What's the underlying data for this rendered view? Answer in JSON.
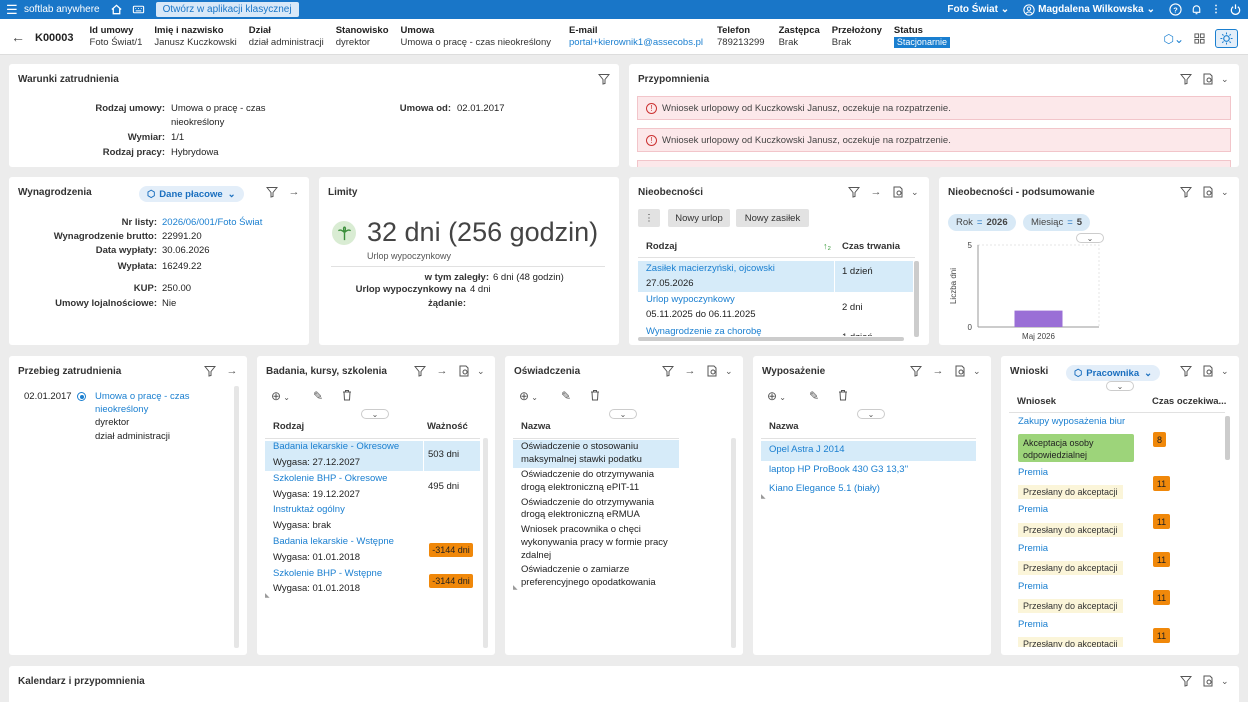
{
  "topbar": {
    "brand": "softlab anywhere",
    "classic_btn": "Otwórz w aplikacji klasycznej",
    "company": "Foto Świat",
    "user": "Magdalena Wilkowska"
  },
  "header": {
    "id": "K00003",
    "cols": [
      {
        "l": "Id umowy",
        "v": "Foto Świat/1"
      },
      {
        "l": "Imię i nazwisko",
        "v": "Janusz Kuczkowski"
      },
      {
        "l": "Dział",
        "v": "dział administracji"
      },
      {
        "l": "Stanowisko",
        "v": "dyrektor"
      },
      {
        "l": "Umowa",
        "v": "Umowa o pracę - czas nieokreślony"
      },
      {
        "l": "E-mail",
        "v": "portal+kierownik1@assecobs.pl"
      },
      {
        "l": "Telefon",
        "v": "789213299"
      },
      {
        "l": "Zastępca",
        "v": "Brak"
      },
      {
        "l": "Przełożony",
        "v": "Brak"
      },
      {
        "l": "Status",
        "v": "Stacjonarnie"
      }
    ]
  },
  "warunki": {
    "title": "Warunki zatrudnienia",
    "rodzaj_umowy_l": "Rodzaj umowy:",
    "rodzaj_umowy_v1": "Umowa o pracę - czas",
    "rodzaj_umowy_v2": "nieokreślony",
    "wymiar_l": "Wymiar:",
    "wymiar_v": "1/1",
    "rodzaj_pracy_l": "Rodzaj pracy:",
    "rodzaj_pracy_v": "Hybrydowa",
    "umowa_od_l": "Umowa od:",
    "umowa_od_v": "02.01.2017"
  },
  "przypomnienia": {
    "title": "Przypomnienia",
    "items": [
      "Wniosek urlopowy od Kuczkowski Janusz, oczekuje na rozpatrzenie.",
      "Wniosek urlopowy od Kuczkowski Janusz, oczekuje na rozpatrzenie."
    ]
  },
  "wynagrodzenia": {
    "title": "Wynagrodzenia",
    "pill": "Dane płacowe",
    "rows": [
      {
        "k": "Nr listy:",
        "v": "2026/06/001/Foto Świat"
      },
      {
        "k": "Wynagrodzenie brutto:",
        "v": "22991.20"
      },
      {
        "k": "Data wypłaty:",
        "v": "30.06.2026"
      },
      {
        "k": "Wypłata:",
        "v": "16249.22"
      },
      {
        "k": "KUP:",
        "v": "250.00"
      },
      {
        "k": "Umowy lojalnościowe:",
        "v": "Nie"
      }
    ]
  },
  "limity": {
    "title": "Limity",
    "big": "32 dni (256 godzin)",
    "sub": "Urlop wypoczynkowy",
    "zalegly_l": "w tym zaległy:",
    "zalegly_v": "6 dni (48 godzin)",
    "zadanie_l": "Urlop wypoczynkowy na żądanie:",
    "zadanie_v": "4 dni"
  },
  "nieobecnosci": {
    "title": "Nieobecności",
    "btn1": "Nowy urlop",
    "btn2": "Nowy zasiłek",
    "col1": "Rodzaj",
    "col2": "Czas trwania",
    "rows": [
      {
        "name": "Zasiłek macierzyński, ojcowski",
        "date": "27.05.2026",
        "dur": "1 dzień"
      },
      {
        "name": "Urlop wypoczynkowy",
        "date": "05.11.2025 do 06.11.2025",
        "dur": "2 dni"
      },
      {
        "name": "Wynagrodzenie za chorobę",
        "date": "",
        "dur": "1 dzień"
      }
    ]
  },
  "podsumowanie": {
    "title": "Nieobecności - podsumowanie",
    "rok_l": "Rok",
    "rok_v": "2026",
    "mies_l": "Miesiąc",
    "mies_v": "5"
  },
  "chart_data": {
    "type": "bar",
    "categories": [
      "Maj 2026"
    ],
    "values": [
      1
    ],
    "ylabel": "Liczba dni",
    "ylim": [
      0,
      5
    ],
    "yticks": [
      "0",
      "5"
    ]
  },
  "przebieg": {
    "title": "Przebieg zatrudnienia",
    "date": "02.01.2017",
    "l1": "Umowa o pracę - czas",
    "l2": "nieokreślony",
    "l3": "dyrektor",
    "l4": "dział administracji"
  },
  "badania": {
    "title": "Badania, kursy, szkolenia",
    "col1": "Rodzaj",
    "col2": "Ważność",
    "rows": [
      {
        "name": "Badania lekarskie - Okresowe",
        "sub": "Wygasa: 27.12.2027",
        "val": "503 dni"
      },
      {
        "name": "Szkolenie BHP - Okresowe",
        "sub": "Wygasa: 19.12.2027",
        "val": "495 dni"
      },
      {
        "name": "Instruktaż ogólny",
        "sub": "Wygasa: brak",
        "val": ""
      },
      {
        "name": "Badania lekarskie - Wstępne",
        "sub": "Wygasa: 01.01.2018",
        "val": "-3144 dni"
      },
      {
        "name": "Szkolenie BHP - Wstępne",
        "sub": "Wygasa: 01.01.2018",
        "val": "-3144 dni"
      }
    ]
  },
  "oswiadczenia": {
    "title": "Oświadczenia",
    "col1": "Nazwa",
    "rows": [
      {
        "a": "Oświadczenie o stosowaniu",
        "b": "maksymalnej stawki podatku",
        "c": ""
      },
      {
        "a": "Oświadczenie do otrzymywania",
        "b": "drogą elektroniczną ePIT-11",
        "c": ""
      },
      {
        "a": "Oświadczenie do otrzymywania",
        "b": "drogą elektroniczną eRMUA",
        "c": ""
      },
      {
        "a": "Wniosek pracownika o chęci",
        "b": "wykonywania pracy w formie pracy",
        "c": "zdalnej"
      },
      {
        "a": "Oświadczenie o zamiarze",
        "b": "preferencyjnego opodatkowania",
        "c": ""
      }
    ]
  },
  "wyposazenie": {
    "title": "Wyposażenie",
    "col1": "Nazwa",
    "rows": [
      "Opel Astra J 2014",
      "laptop HP ProBook 430 G3 13,3''",
      "Kiano Elegance 5.1 (biały)"
    ]
  },
  "wnioski": {
    "title": "Wnioski",
    "pill": "Pracownika",
    "col1": "Wniosek",
    "col2": "Czas oczekiwa...",
    "rows": [
      {
        "name": "Zakupy wyposażenia biur",
        "tag1": "Akceptacja osoby",
        "tag2": "odpowiedzialnej",
        "n": "8"
      },
      {
        "name": "Premia",
        "tag1": "Przesłany do akceptacji",
        "tag2": "",
        "n": "11"
      },
      {
        "name": "Premia",
        "tag1": "Przesłany do akceptacji",
        "tag2": "",
        "n": "11"
      },
      {
        "name": "Premia",
        "tag1": "Przesłany do akceptacji",
        "tag2": "",
        "n": "11"
      },
      {
        "name": "Premia",
        "tag1": "Przesłany do akceptacji",
        "tag2": "",
        "n": "11"
      },
      {
        "name": "Premia",
        "tag1": "Przesłany do akceptacji",
        "tag2": "",
        "n": "11"
      }
    ]
  },
  "kalendarz": {
    "title": "Kalendarz i przypomnienia"
  }
}
